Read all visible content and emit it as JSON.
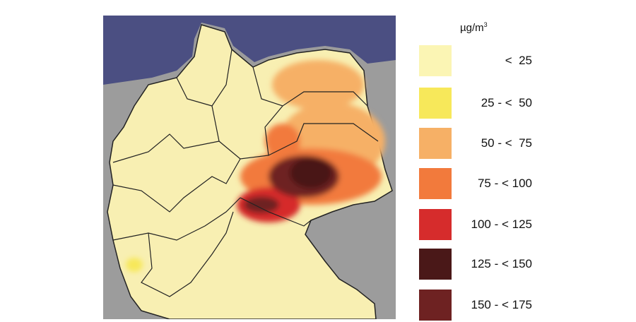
{
  "legend": {
    "unit": "µg/m",
    "unit_sup": "3",
    "items": [
      {
        "label": "<  25",
        "color": "#fbf5b4"
      },
      {
        "label": "25 - <  50",
        "color": "#f7e85a"
      },
      {
        "label": "50 - <  75",
        "color": "#f6b066"
      },
      {
        "label": "75 - < 100",
        "color": "#f27a3c"
      },
      {
        "label": "100 - < 125",
        "color": "#d62c2c"
      },
      {
        "label": "125 - < 150",
        "color": "#4a1818"
      },
      {
        "label": "150 - < 175",
        "color": "#6e2222"
      }
    ]
  },
  "map": {
    "sea_color": "#4b4f82",
    "neighbor_color": "#9c9c9c",
    "land_color": "#f8efb2"
  }
}
